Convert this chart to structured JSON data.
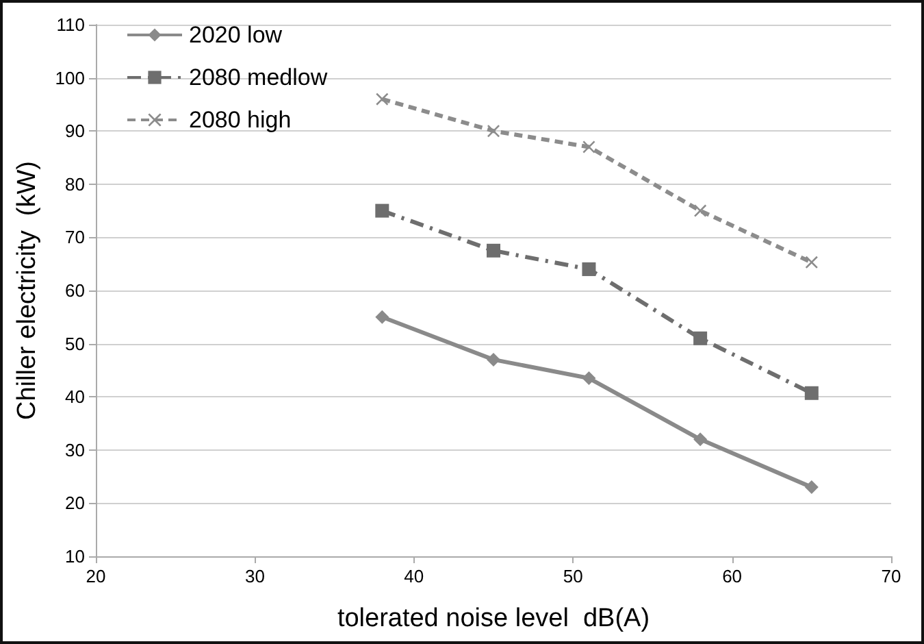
{
  "chart_data": {
    "type": "line",
    "xlabel": "tolerated noise level  dB(A)",
    "ylabel": "Chiller electricity  (kW)",
    "xlim": [
      20,
      70
    ],
    "xticks": [
      20,
      30,
      40,
      50,
      60,
      70
    ],
    "ylim": [
      10,
      110
    ],
    "yticks": [
      10,
      20,
      30,
      40,
      50,
      60,
      70,
      80,
      90,
      100,
      110
    ],
    "grid": "y",
    "legend": "top left",
    "series": [
      {
        "name": "2020 low",
        "color": "#8a8a8a",
        "marker": "diamond",
        "line_style": "solid",
        "x": [
          38,
          45,
          51,
          58,
          65
        ],
        "values": [
          55,
          47,
          43.5,
          32,
          23
        ]
      },
      {
        "name": "2080 medlow",
        "color": "#6e6e6e",
        "marker": "square",
        "line_style": "dashdot",
        "x": [
          38,
          45,
          51,
          58,
          65
        ],
        "values": [
          75,
          67.5,
          64,
          51,
          40.7
        ]
      },
      {
        "name": "2080 high",
        "color": "#8c8c8c",
        "marker": "cross",
        "line_style": "dashed",
        "x": [
          38,
          45,
          51,
          58,
          65
        ],
        "values": [
          96,
          90,
          87,
          75,
          65.3
        ]
      }
    ]
  }
}
